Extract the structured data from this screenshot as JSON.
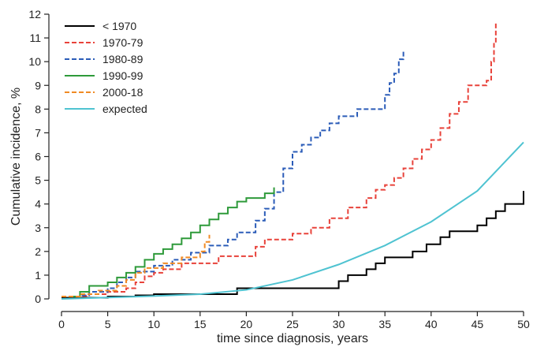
{
  "chart_data": {
    "type": "line",
    "subtype": "step",
    "title": "",
    "xlabel": "time since diagnosis, years",
    "ylabel": "Cumulative incidence, %",
    "xlim": [
      0,
      50
    ],
    "ylim": [
      0,
      12
    ],
    "x_ticks": [
      0,
      5,
      10,
      15,
      20,
      25,
      30,
      35,
      40,
      45,
      50
    ],
    "y_ticks": [
      0,
      1,
      2,
      3,
      4,
      5,
      6,
      7,
      8,
      9,
      10,
      11,
      12
    ],
    "grid": false,
    "legend_position": "top-left",
    "series": [
      {
        "name": "< 1970",
        "color": "#000000",
        "dash": "solid",
        "step": true,
        "points": [
          [
            0,
            0.05
          ],
          [
            5,
            0.1
          ],
          [
            8,
            0.15
          ],
          [
            10,
            0.2
          ],
          [
            19,
            0.25
          ],
          [
            19,
            0.45
          ],
          [
            29.5,
            0.45
          ],
          [
            30,
            0.75
          ],
          [
            31,
            1.0
          ],
          [
            33,
            1.25
          ],
          [
            34,
            1.5
          ],
          [
            35,
            1.75
          ],
          [
            38,
            2.0
          ],
          [
            39.5,
            2.3
          ],
          [
            41,
            2.6
          ],
          [
            42,
            2.85
          ],
          [
            45,
            3.1
          ],
          [
            46,
            3.4
          ],
          [
            47,
            3.7
          ],
          [
            48,
            4.0
          ],
          [
            50,
            4.3
          ],
          [
            50,
            4.55
          ]
        ]
      },
      {
        "name": "1970-79",
        "color": "#e8423a",
        "dash": "dashed",
        "step": true,
        "points": [
          [
            0,
            0.1
          ],
          [
            2,
            0.12
          ],
          [
            3,
            0.2
          ],
          [
            5,
            0.3
          ],
          [
            7,
            0.45
          ],
          [
            8,
            0.7
          ],
          [
            9,
            0.95
          ],
          [
            10,
            1.1
          ],
          [
            11,
            1.25
          ],
          [
            13,
            1.5
          ],
          [
            17,
            1.8
          ],
          [
            21,
            2.2
          ],
          [
            22,
            2.5
          ],
          [
            25,
            2.75
          ],
          [
            27,
            3.0
          ],
          [
            29,
            3.4
          ],
          [
            31,
            3.85
          ],
          [
            33,
            4.25
          ],
          [
            34,
            4.6
          ],
          [
            35,
            4.8
          ],
          [
            36,
            5.1
          ],
          [
            37,
            5.5
          ],
          [
            38,
            5.9
          ],
          [
            39,
            6.3
          ],
          [
            40,
            6.7
          ],
          [
            41,
            7.2
          ],
          [
            42,
            7.8
          ],
          [
            43,
            8.3
          ],
          [
            44,
            9.0
          ],
          [
            46,
            9.2
          ],
          [
            46.5,
            10.0
          ],
          [
            46.8,
            10.8
          ],
          [
            47,
            11.7
          ]
        ]
      },
      {
        "name": "1980-89",
        "color": "#2b5cb8",
        "dash": "dashed",
        "step": true,
        "points": [
          [
            0,
            0.1
          ],
          [
            2,
            0.15
          ],
          [
            3,
            0.3
          ],
          [
            5,
            0.45
          ],
          [
            6,
            0.7
          ],
          [
            7,
            0.9
          ],
          [
            8,
            1.15
          ],
          [
            10,
            1.4
          ],
          [
            12,
            1.65
          ],
          [
            14,
            1.95
          ],
          [
            16,
            2.25
          ],
          [
            18,
            2.5
          ],
          [
            19,
            2.8
          ],
          [
            21,
            3.3
          ],
          [
            22,
            3.8
          ],
          [
            23,
            4.5
          ],
          [
            24,
            5.5
          ],
          [
            25,
            6.2
          ],
          [
            26,
            6.5
          ],
          [
            27,
            6.8
          ],
          [
            28,
            7.1
          ],
          [
            29,
            7.4
          ],
          [
            30,
            7.7
          ],
          [
            32,
            8.0
          ],
          [
            35,
            8.6
          ],
          [
            35.5,
            9.1
          ],
          [
            36,
            9.5
          ],
          [
            36.5,
            10.1
          ],
          [
            37,
            10.45
          ]
        ]
      },
      {
        "name": "1990-99",
        "color": "#2e9a3a",
        "dash": "solid",
        "step": true,
        "points": [
          [
            1,
            0.1
          ],
          [
            2,
            0.3
          ],
          [
            3,
            0.55
          ],
          [
            5,
            0.7
          ],
          [
            6,
            0.9
          ],
          [
            7,
            1.1
          ],
          [
            8,
            1.35
          ],
          [
            9,
            1.65
          ],
          [
            10,
            1.9
          ],
          [
            11,
            2.1
          ],
          [
            12,
            2.3
          ],
          [
            13,
            2.55
          ],
          [
            14,
            2.8
          ],
          [
            15,
            3.1
          ],
          [
            16,
            3.35
          ],
          [
            17,
            3.6
          ],
          [
            18,
            3.85
          ],
          [
            19,
            4.1
          ],
          [
            20,
            4.25
          ],
          [
            22,
            4.45
          ],
          [
            23,
            4.7
          ]
        ]
      },
      {
        "name": "2000-18",
        "color": "#f08a24",
        "dash": "dashed",
        "step": true,
        "points": [
          [
            0,
            0.1
          ],
          [
            2,
            0.2
          ],
          [
            4,
            0.35
          ],
          [
            6,
            0.55
          ],
          [
            7,
            0.8
          ],
          [
            8,
            1.1
          ],
          [
            9,
            1.3
          ],
          [
            11,
            1.5
          ],
          [
            13,
            1.75
          ],
          [
            15,
            2.0
          ],
          [
            15.5,
            2.4
          ],
          [
            16,
            2.7
          ]
        ]
      },
      {
        "name": "expected",
        "color": "#4fc3d1",
        "dash": "solid",
        "step": false,
        "points": [
          [
            0,
            0
          ],
          [
            5,
            0.06
          ],
          [
            10,
            0.12
          ],
          [
            15,
            0.2
          ],
          [
            20,
            0.38
          ],
          [
            25,
            0.8
          ],
          [
            30,
            1.45
          ],
          [
            35,
            2.25
          ],
          [
            40,
            3.25
          ],
          [
            45,
            4.55
          ],
          [
            50,
            6.6
          ]
        ]
      }
    ]
  }
}
